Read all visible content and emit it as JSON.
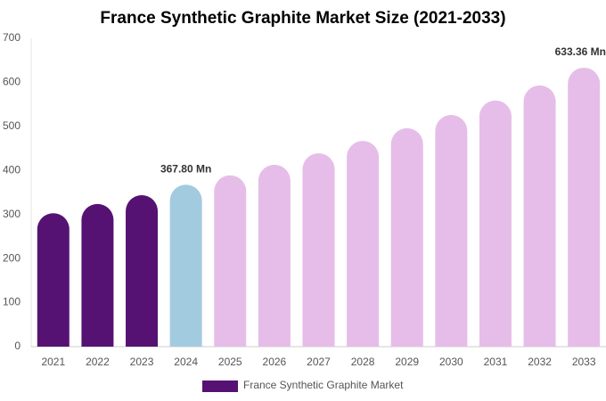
{
  "chart_data": {
    "type": "bar",
    "title": "France Synthetic Graphite Market Size (2021-2033)",
    "categories": [
      "2021",
      "2022",
      "2023",
      "2024",
      "2025",
      "2026",
      "2027",
      "2028",
      "2029",
      "2030",
      "2031",
      "2032",
      "2033"
    ],
    "series": [
      {
        "name": "France Synthetic Graphite Market",
        "color": "#561273",
        "values": [
          303,
          324,
          344,
          367.8,
          389,
          413,
          439,
          467,
          496,
          526,
          559,
          593,
          633.36
        ],
        "value_labels": [
          null,
          null,
          null,
          "367.80 Mn",
          null,
          null,
          null,
          null,
          null,
          null,
          null,
          null,
          "633.36 Mn"
        ],
        "bar_colors": [
          "#561273",
          "#561273",
          "#561273",
          "#a3cbe0",
          "#e6bde8",
          "#e6bde8",
          "#e6bde8",
          "#e6bde8",
          "#e6bde8",
          "#e6bde8",
          "#e6bde8",
          "#e6bde8",
          "#e6bde8"
        ]
      }
    ],
    "ylim": [
      0,
      700
    ],
    "yticks": [
      0,
      100,
      200,
      300,
      400,
      500,
      600,
      700
    ],
    "grid": false,
    "legend": "bottom"
  }
}
